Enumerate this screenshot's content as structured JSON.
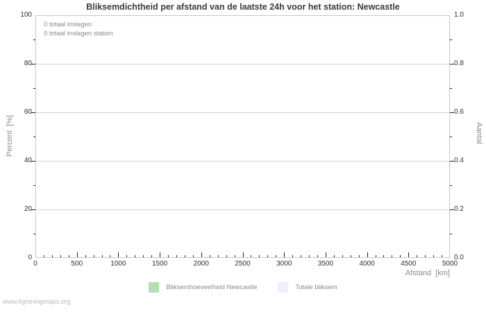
{
  "title": "Bliksemdichtheid per afstand van de laatste 24h voor het station: Newcastle",
  "annotations": {
    "line1": "0 totaal inslagen",
    "line2": "0 totaal inslagen station"
  },
  "legend": [
    {
      "label": "Bliksemhoeveelheid Newcastle",
      "color": "#b3dfb3"
    },
    {
      "label": "Totale bliksem",
      "color": "#f0f0fc"
    }
  ],
  "footer": "www.lightningmaps.org",
  "chart_data": {
    "type": "bar",
    "title": "Bliksemdichtheid per afstand van de laatste 24h voor het station: Newcastle",
    "xlabel": "Afstand  [km]",
    "ylabel_left": "Percent  [%]",
    "ylabel_right": "Aantal",
    "xlim": [
      0,
      5000
    ],
    "ylim_left": [
      0,
      100
    ],
    "ylim_right": [
      0.0,
      1.0
    ],
    "x_major_ticks": [
      0,
      500,
      1000,
      1500,
      2000,
      2500,
      3000,
      3500,
      4000,
      4500,
      5000
    ],
    "x_minor_step": 100,
    "y_left_ticks": [
      0,
      20,
      40,
      60,
      80,
      100
    ],
    "y_left_minor_ticks": [
      10,
      30,
      50,
      70,
      90
    ],
    "y_right_tick_labels": [
      "0.0",
      "0.2",
      "0.4",
      "0.6",
      "0.8",
      "1.0"
    ],
    "y_right_minor_ticks": [
      0.1,
      0.3,
      0.5,
      0.7,
      0.9
    ],
    "grid": "horizontal-only",
    "legend_position": "bottom",
    "series": [
      {
        "name": "Bliksemhoeveelheid Newcastle",
        "color": "#b3dfb3",
        "values": []
      },
      {
        "name": "Totale bliksem",
        "color": "#f0f0fc",
        "values": []
      }
    ],
    "total_strikes": 0,
    "total_strikes_station": 0
  }
}
